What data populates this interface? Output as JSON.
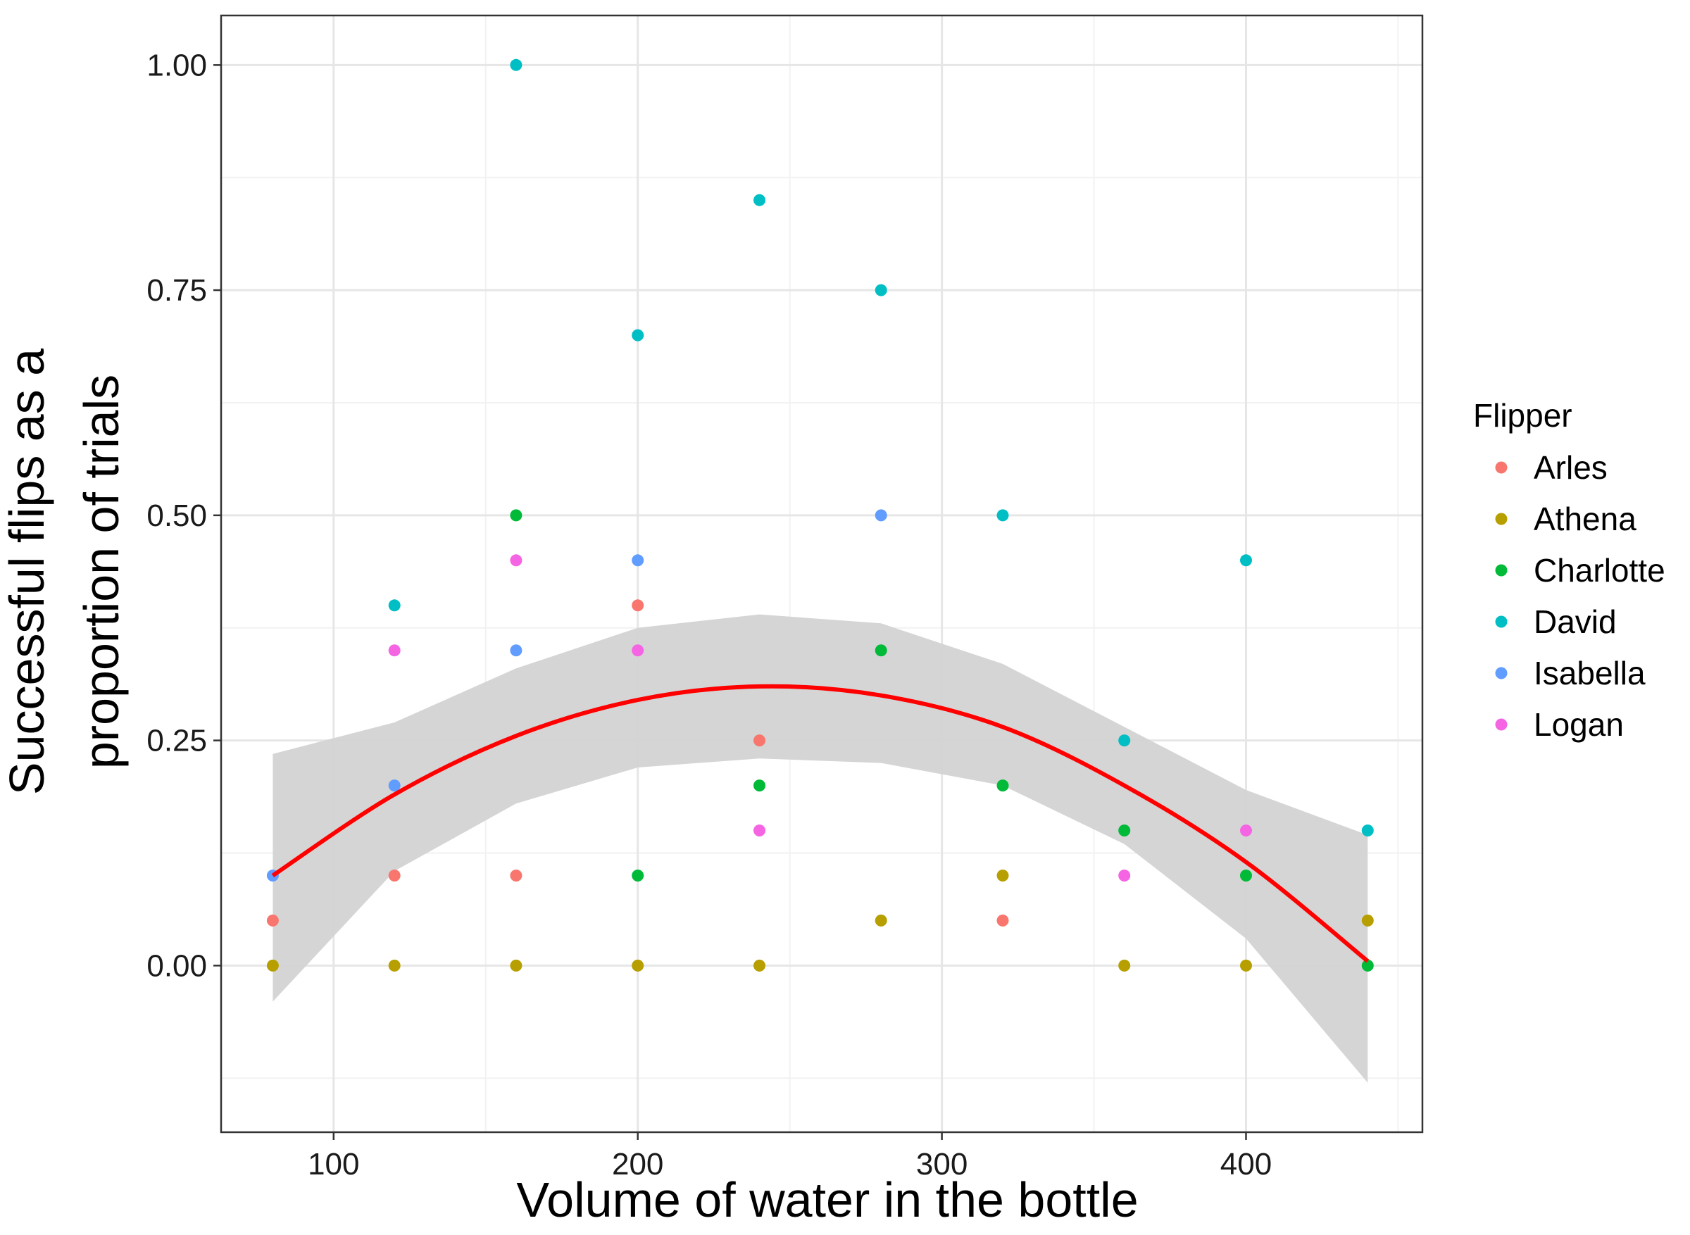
{
  "chart_data": {
    "type": "scatter",
    "xlabel": "Volume of water in the bottle",
    "ylabel_lines": [
      "Successful flips as a",
      "proportion of trials"
    ],
    "xlim": [
      63,
      458
    ],
    "ylim": [
      -0.185,
      1.055
    ],
    "x_ticks": [
      100,
      200,
      300,
      400
    ],
    "x_tick_labels": [
      "100",
      "200",
      "300",
      "400"
    ],
    "y_ticks": [
      0,
      0.25,
      0.5,
      0.75,
      1.0
    ],
    "y_tick_labels": [
      "0.00",
      "0.25",
      "0.50",
      "0.75",
      "1.00"
    ],
    "grid": true,
    "legend": {
      "title": "Flipper",
      "position": "right"
    },
    "series": [
      {
        "name": "Arles",
        "color": "#F8766D",
        "points": [
          [
            80,
            0.05
          ],
          [
            120,
            0.1
          ],
          [
            160,
            0.1
          ],
          [
            200,
            0.4
          ],
          [
            240,
            0.25
          ],
          [
            320,
            0.05
          ]
        ]
      },
      {
        "name": "Athena",
        "color": "#B79F00",
        "points": [
          [
            80,
            0
          ],
          [
            120,
            0
          ],
          [
            160,
            0
          ],
          [
            200,
            0
          ],
          [
            240,
            0
          ],
          [
            280,
            0.05
          ],
          [
            320,
            0.1
          ],
          [
            360,
            0
          ],
          [
            400,
            0
          ],
          [
            440,
            0.05
          ]
        ]
      },
      {
        "name": "Charlotte",
        "color": "#00BA38",
        "points": [
          [
            160,
            0.5
          ],
          [
            200,
            0.1
          ],
          [
            240,
            0.2
          ],
          [
            280,
            0.35
          ],
          [
            320,
            0.2
          ],
          [
            360,
            0.15
          ],
          [
            400,
            0.1
          ],
          [
            440,
            0
          ]
        ]
      },
      {
        "name": "David",
        "color": "#00BFC4",
        "points": [
          [
            120,
            0.4
          ],
          [
            160,
            1.0
          ],
          [
            200,
            0.7
          ],
          [
            240,
            0.85
          ],
          [
            280,
            0.75
          ],
          [
            320,
            0.5
          ],
          [
            360,
            0.25
          ],
          [
            400,
            0.45
          ],
          [
            440,
            0.15
          ]
        ]
      },
      {
        "name": "Isabella",
        "color": "#619CFF",
        "points": [
          [
            80,
            0.1
          ],
          [
            120,
            0.2
          ],
          [
            160,
            0.35
          ],
          [
            200,
            0.45
          ],
          [
            280,
            0.5
          ]
        ]
      },
      {
        "name": "Logan",
        "color": "#F564E3",
        "points": [
          [
            120,
            0.35
          ],
          [
            160,
            0.45
          ],
          [
            200,
            0.35
          ],
          [
            240,
            0.15
          ],
          [
            360,
            0.1
          ],
          [
            400,
            0.15
          ]
        ]
      }
    ],
    "smooth": {
      "color": "#FF0000",
      "band_color": "#D3D3D3",
      "x": [
        80,
        120,
        160,
        200,
        240,
        280,
        320,
        360,
        400,
        440
      ],
      "y": [
        0.1,
        0.19,
        0.255,
        0.295,
        0.31,
        0.3,
        0.265,
        0.2,
        0.115,
        0.005
      ],
      "lower": [
        -0.04,
        0.105,
        0.18,
        0.22,
        0.23,
        0.225,
        0.2,
        0.135,
        0.03,
        -0.13
      ],
      "upper": [
        0.235,
        0.27,
        0.33,
        0.375,
        0.39,
        0.38,
        0.335,
        0.265,
        0.195,
        0.145
      ]
    }
  }
}
